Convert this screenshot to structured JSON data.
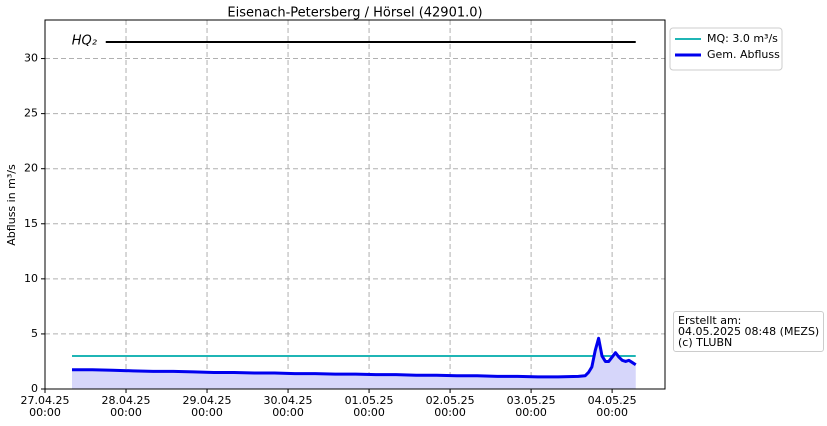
{
  "chart_data": {
    "type": "line",
    "title": "Eisenach-Petersberg / Hörsel (42901.0)",
    "y_label": "Abfluss in m³/s",
    "xlim": [
      "2025-04-27T00:00",
      "2025-05-04T15:40"
    ],
    "ylim": [
      0,
      33.5
    ],
    "yticks": [
      0,
      5,
      10,
      15,
      20,
      25,
      30
    ],
    "xticks": [
      {
        "value": "2025-04-27T00:00",
        "label": "27.04.25\n00:00"
      },
      {
        "value": "2025-04-28T00:00",
        "label": "28.04.25\n00:00"
      },
      {
        "value": "2025-04-29T00:00",
        "label": "29.04.25\n00:00"
      },
      {
        "value": "2025-04-30T00:00",
        "label": "30.04.25\n00:00"
      },
      {
        "value": "2025-05-01T00:00",
        "label": "01.05.25\n00:00"
      },
      {
        "value": "2025-05-02T00:00",
        "label": "02.05.25\n00:00"
      },
      {
        "value": "2025-05-03T00:00",
        "label": "03.05.25\n00:00"
      },
      {
        "value": "2025-05-04T00:00",
        "label": "04.05.25\n00:00"
      }
    ],
    "grid": true,
    "legend_position": "outside upper right",
    "series": [
      {
        "name": "HQ₂",
        "color": "#000000",
        "width": 2,
        "in_legend": false,
        "x": [
          "2025-04-27T18:00",
          "2025-05-04T07:00"
        ],
        "values": [
          31.5,
          31.5
        ]
      },
      {
        "name": "MQ: 3.0 m³/s",
        "color": "#1fb5b5",
        "width": 2,
        "in_legend": true,
        "x": [
          "2025-04-27T08:00",
          "2025-05-04T07:00"
        ],
        "values": [
          3.0,
          3.0
        ]
      },
      {
        "name": "Gem. Abfluss",
        "color": "#0000ee",
        "width": 3,
        "in_legend": true,
        "fill": "#d6d6fa",
        "x": [
          "2025-04-27T08:00",
          "2025-04-27T14:00",
          "2025-04-27T20:00",
          "2025-04-28T02:00",
          "2025-04-28T08:00",
          "2025-04-28T14:00",
          "2025-04-28T20:00",
          "2025-04-29T02:00",
          "2025-04-29T08:00",
          "2025-04-29T14:00",
          "2025-04-29T20:00",
          "2025-04-30T02:00",
          "2025-04-30T08:00",
          "2025-04-30T14:00",
          "2025-04-30T20:00",
          "2025-05-01T02:00",
          "2025-05-01T08:00",
          "2025-05-01T14:00",
          "2025-05-01T20:00",
          "2025-05-02T02:00",
          "2025-05-02T08:00",
          "2025-05-02T14:00",
          "2025-05-02T20:00",
          "2025-05-03T02:00",
          "2025-05-03T08:00",
          "2025-05-03T14:00",
          "2025-05-03T16:00",
          "2025-05-03T17:00",
          "2025-05-03T18:00",
          "2025-05-03T19:00",
          "2025-05-03T20:00",
          "2025-05-03T21:00",
          "2025-05-03T22:00",
          "2025-05-03T23:00",
          "2025-05-04T00:00",
          "2025-05-04T01:00",
          "2025-05-04T02:00",
          "2025-05-04T03:00",
          "2025-05-04T04:00",
          "2025-05-04T05:00",
          "2025-05-04T06:00",
          "2025-05-04T07:00"
        ],
        "values": [
          1.75,
          1.75,
          1.7,
          1.65,
          1.6,
          1.6,
          1.55,
          1.5,
          1.5,
          1.45,
          1.45,
          1.4,
          1.4,
          1.35,
          1.35,
          1.3,
          1.3,
          1.25,
          1.25,
          1.2,
          1.2,
          1.15,
          1.15,
          1.1,
          1.1,
          1.15,
          1.2,
          1.5,
          2.0,
          3.5,
          4.6,
          3.0,
          2.5,
          2.5,
          2.9,
          3.3,
          2.9,
          2.6,
          2.5,
          2.6,
          2.4,
          2.2
        ]
      }
    ],
    "annotation": [
      "Erstellt am:",
      "04.05.2025 08:48 (MEZS)",
      "(c) TLUBN"
    ]
  }
}
